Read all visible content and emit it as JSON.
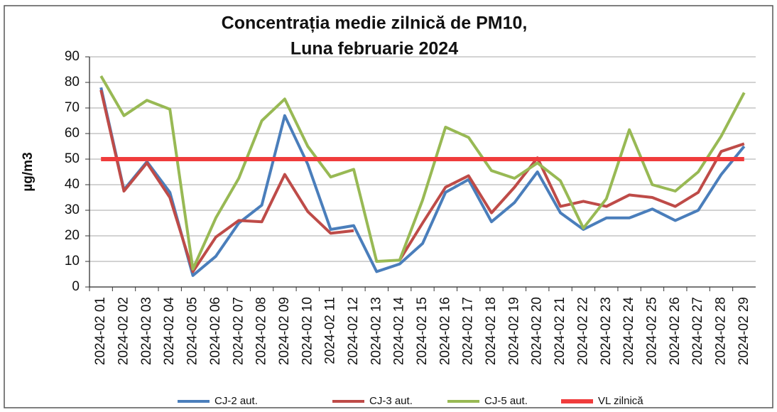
{
  "chart_data": {
    "type": "line",
    "title": "Concentrația medie zilnică de PM10,",
    "subtitle": "Luna februarie 2024",
    "y_label": "µg/m3",
    "categories": [
      "2024-02 01",
      "2024-02 02",
      "2024-02 03",
      "2024-02 04",
      "2024-02 05",
      "2024-02 06",
      "2024-02 07",
      "2024-02 08",
      "2024-02 09",
      "2024-02 10",
      "2024-02 11",
      "2024-02 12",
      "2024-02 13",
      "2024-02 14",
      "2024-02 15",
      "2024-02 16",
      "2024-02 17",
      "2024-02 18",
      "2024-02 19",
      "2024-02 20",
      "2024-02 21",
      "2024-02 22",
      "2024-02 23",
      "2024-02 24",
      "2024-02 25",
      "2024-02 26",
      "2024-02 27",
      "2024-02 28",
      "2024-02 29"
    ],
    "series": [
      {
        "name": "CJ-2 aut.",
        "color": "#4a7ebb",
        "width": 4,
        "values": [
          78,
          38,
          49,
          37,
          4.5,
          12,
          25,
          32,
          67,
          48,
          22.5,
          24,
          6,
          9,
          17,
          37,
          42,
          25.5,
          33,
          45,
          29,
          22.5,
          27,
          27,
          30.5,
          26,
          30,
          44,
          55
        ]
      },
      {
        "name": "CJ-3 aut.",
        "color": "#be4b48",
        "width": 4,
        "values": [
          77,
          37.5,
          48.5,
          35,
          6,
          19.5,
          26,
          25.5,
          44,
          29.5,
          21,
          22,
          null,
          10.5,
          25,
          39,
          43.5,
          29,
          39,
          50.5,
          31.5,
          33.5,
          31.5,
          36,
          35,
          31.5,
          37,
          53,
          56
        ]
      },
      {
        "name": "CJ-5 aut.",
        "color": "#98b954",
        "width": 4,
        "values": [
          82.5,
          67,
          73,
          69.5,
          7,
          27,
          42.5,
          65,
          73.5,
          55,
          43,
          46,
          10,
          10.5,
          34,
          62.5,
          58.5,
          45.5,
          42.5,
          48.5,
          41.5,
          23,
          34.5,
          61.5,
          40,
          37.5,
          45,
          59,
          76
        ]
      },
      {
        "name": "VL zilnică",
        "color": "#f03c3c",
        "width": 6,
        "values": [
          50,
          50,
          50,
          50,
          50,
          50,
          50,
          50,
          50,
          50,
          50,
          50,
          50,
          50,
          50,
          50,
          50,
          50,
          50,
          50,
          50,
          50,
          50,
          50,
          50,
          50,
          50,
          50,
          50
        ]
      }
    ],
    "ylim": [
      0,
      90
    ],
    "yticks": [
      0,
      10,
      20,
      30,
      40,
      50,
      60,
      70,
      80,
      90
    ],
    "grid": true
  }
}
